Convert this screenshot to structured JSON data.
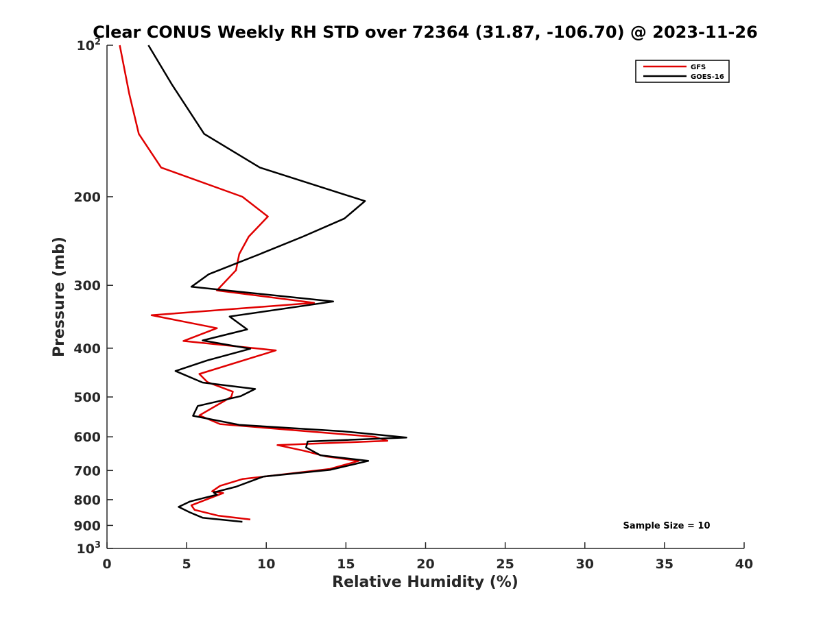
{
  "chart_data": {
    "type": "line",
    "title": "Clear CONUS Weekly RH STD over 72364 (31.87, -106.70) @ 2023-11-26",
    "xlabel": "Relative Humidity (%)",
    "ylabel": "Pressure (mb)",
    "xlim": [
      0,
      40
    ],
    "ylim": [
      100,
      1000
    ],
    "y_scale": "log",
    "y_reversed": true,
    "x_ticks": [
      0,
      5,
      10,
      15,
      20,
      25,
      30,
      35,
      40
    ],
    "x_tick_labels": [
      "0",
      "5",
      "10",
      "15",
      "20",
      "25",
      "30",
      "35",
      "40"
    ],
    "y_ticks": [
      100,
      200,
      300,
      400,
      500,
      600,
      700,
      800,
      900,
      1000
    ],
    "y_tick_labels": [
      {
        "base": "10",
        "exp": "2"
      },
      {
        "base": "200"
      },
      {
        "base": "300"
      },
      {
        "base": "400"
      },
      {
        "base": "500"
      },
      {
        "base": "600"
      },
      {
        "base": "700"
      },
      {
        "base": "800"
      },
      {
        "base": "900"
      },
      {
        "base": "10",
        "exp": "3"
      }
    ],
    "grid": false,
    "legend_position": "top-right",
    "annotation": "Sample Size = 10",
    "series": [
      {
        "name": "GFS",
        "color": "#e00000",
        "points": [
          [
            0.8,
            100
          ],
          [
            1.4,
            125
          ],
          [
            2.0,
            150
          ],
          [
            3.4,
            175
          ],
          [
            8.5,
            200
          ],
          [
            10.1,
            219
          ],
          [
            8.9,
            240
          ],
          [
            8.3,
            260
          ],
          [
            8.1,
            280
          ],
          [
            6.9,
            307
          ],
          [
            13.0,
            325
          ],
          [
            2.8,
            344
          ],
          [
            6.9,
            365
          ],
          [
            4.8,
            387
          ],
          [
            10.6,
            404
          ],
          [
            5.8,
            450
          ],
          [
            6.3,
            467
          ],
          [
            7.9,
            488
          ],
          [
            7.8,
            500
          ],
          [
            5.8,
            544
          ],
          [
            7.1,
            566
          ],
          [
            16.8,
            600
          ],
          [
            17.6,
            611
          ],
          [
            10.7,
            623
          ],
          [
            12.4,
            640
          ],
          [
            13.7,
            656
          ],
          [
            15.8,
            670
          ],
          [
            14.0,
            695
          ],
          [
            8.5,
            728
          ],
          [
            7.1,
            751
          ],
          [
            6.6,
            770
          ],
          [
            7.3,
            776
          ],
          [
            5.3,
            821
          ],
          [
            5.5,
            838
          ],
          [
            7.0,
            861
          ],
          [
            9.0,
            876
          ]
        ]
      },
      {
        "name": "GOES-16",
        "color": "#000000",
        "points": [
          [
            2.6,
            100
          ],
          [
            4.1,
            120
          ],
          [
            6.1,
            150
          ],
          [
            9.6,
            175
          ],
          [
            13.8,
            193
          ],
          [
            16.2,
            204
          ],
          [
            14.9,
            221
          ],
          [
            12.3,
            240
          ],
          [
            9.6,
            260
          ],
          [
            6.4,
            285
          ],
          [
            5.3,
            302
          ],
          [
            14.2,
            323
          ],
          [
            7.7,
            346
          ],
          [
            8.8,
            367
          ],
          [
            6.0,
            386
          ],
          [
            9.0,
            401
          ],
          [
            6.3,
            423
          ],
          [
            4.3,
            444
          ],
          [
            6.0,
            468
          ],
          [
            9.3,
            482
          ],
          [
            8.4,
            498
          ],
          [
            5.7,
            521
          ],
          [
            5.4,
            545
          ],
          [
            8.3,
            568
          ],
          [
            14.8,
            585
          ],
          [
            18.8,
            602
          ],
          [
            12.6,
            613
          ],
          [
            12.5,
            630
          ],
          [
            13.4,
            653
          ],
          [
            16.4,
            670
          ],
          [
            14.0,
            698
          ],
          [
            9.8,
            720
          ],
          [
            8.1,
            754
          ],
          [
            6.7,
            774
          ],
          [
            6.9,
            782
          ],
          [
            5.2,
            807
          ],
          [
            4.5,
            827
          ],
          [
            5.2,
            848
          ],
          [
            6.0,
            869
          ],
          [
            8.5,
            885
          ]
        ]
      }
    ]
  }
}
